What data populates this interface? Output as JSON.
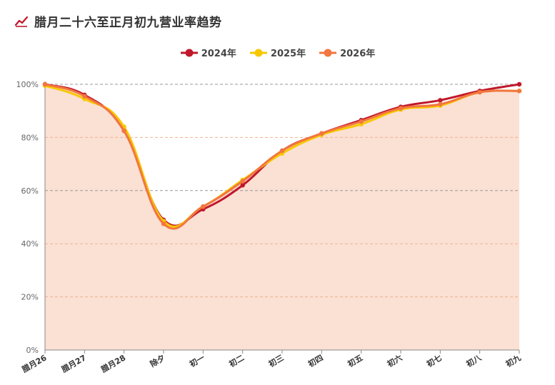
{
  "title": "腊月二十六至正月初九营业率趋势",
  "colors": {
    "icon": "#c0182b",
    "area_fill": "#fbe0d4",
    "grid_dashed": "#9a9a9a",
    "grid_orange": "#f0b48f",
    "axis": "#888888"
  },
  "chart_data": {
    "type": "line",
    "categories": [
      "腊月26",
      "腊月27",
      "腊月28",
      "除夕",
      "初一",
      "初二",
      "初三",
      "初四",
      "初五",
      "初六",
      "初七",
      "初八",
      "初九"
    ],
    "y_ticks": [
      "0%",
      "20%",
      "40%",
      "60%",
      "80%",
      "100%"
    ],
    "ylim": [
      0,
      100
    ],
    "legend_position": "top-center",
    "grid": true,
    "series": [
      {
        "name": "2024年",
        "color": "#c0182b",
        "values": [
          100,
          96,
          82.5,
          49,
          53,
          62,
          75,
          81.5,
          86.5,
          91.5,
          94,
          97.5,
          100
        ]
      },
      {
        "name": "2025年",
        "color": "#f7c800",
        "values": [
          99.5,
          94.5,
          84,
          48.5,
          54,
          64,
          74,
          81,
          85,
          90.5,
          92,
          97,
          97.5
        ]
      },
      {
        "name": "2026年",
        "color": "#f2763f",
        "values": [
          100,
          95.5,
          82.5,
          47.5,
          54,
          63.5,
          75,
          81.5,
          86,
          91,
          92.5,
          97,
          97.5
        ]
      }
    ]
  }
}
